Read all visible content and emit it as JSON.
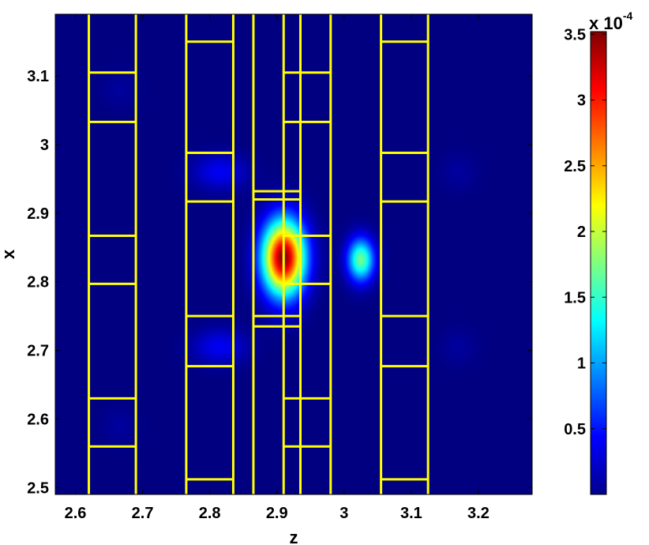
{
  "chart_data": {
    "type": "heatmap",
    "title": "",
    "xlabel": "z",
    "ylabel": "x",
    "xlim": [
      2.57,
      3.28
    ],
    "ylim": [
      2.49,
      3.19
    ],
    "xticks": [
      2.6,
      2.7,
      2.8,
      2.9,
      3.0,
      3.1,
      3.2
    ],
    "xtick_labels": [
      "2.6",
      "2.7",
      "2.8",
      "2.9",
      "3",
      "3.1",
      "3.2"
    ],
    "yticks": [
      2.5,
      2.6,
      2.7,
      2.8,
      2.9,
      3.0,
      3.1
    ],
    "ytick_labels": [
      "2.5",
      "2.6",
      "2.7",
      "2.8",
      "2.9",
      "3",
      "3.1"
    ],
    "grid": false,
    "colormap": "jet",
    "background_color": "#00008f",
    "overlay_color": "#ffff00",
    "colorbar": {
      "range": [
        0,
        0.000352
      ],
      "ticks": [
        5e-05,
        0.0001,
        0.00015,
        0.0002,
        0.00025,
        0.0003,
        0.00035
      ],
      "tick_labels": [
        "0.5",
        "1",
        "1.5",
        "2",
        "2.5",
        "3",
        "3.5"
      ],
      "multiplier_base": "x 10",
      "multiplier_exponent": "-4"
    },
    "hotspots": [
      {
        "z": 2.91,
        "x": 2.835,
        "peak": 0.00035,
        "sigma_z": 0.022,
        "sigma_x": 0.038
      },
      {
        "z": 3.025,
        "x": 2.832,
        "peak": 0.00017,
        "sigma_z": 0.014,
        "sigma_x": 0.022
      },
      {
        "z": 2.815,
        "x": 2.96,
        "peak": 4e-05,
        "sigma_z": 0.028,
        "sigma_x": 0.018
      },
      {
        "z": 2.815,
        "x": 2.705,
        "peak": 4e-05,
        "sigma_z": 0.028,
        "sigma_x": 0.018
      },
      {
        "z": 2.665,
        "x": 3.08,
        "peak": 1e-05,
        "sigma_z": 0.02,
        "sigma_x": 0.02
      },
      {
        "z": 2.665,
        "x": 2.59,
        "peak": 1e-05,
        "sigma_z": 0.02,
        "sigma_x": 0.02
      },
      {
        "z": 3.17,
        "x": 2.96,
        "peak": 1e-05,
        "sigma_z": 0.02,
        "sigma_x": 0.02
      },
      {
        "z": 3.17,
        "x": 2.705,
        "peak": 1e-05,
        "sigma_z": 0.02,
        "sigma_x": 0.02
      }
    ],
    "structures": [
      {
        "z_range": [
          2.62,
          2.69
        ],
        "horizontal_bars_x": [
          3.105,
          3.033,
          2.867,
          2.797,
          2.63,
          2.56
        ]
      },
      {
        "z_range": [
          2.765,
          2.835
        ],
        "horizontal_bars_x": [
          3.15,
          2.988,
          2.917,
          2.75,
          2.677,
          2.512
        ]
      },
      {
        "z_range": [
          2.865,
          2.935
        ],
        "horizontal_bars_x": [
          2.932,
          2.92,
          2.75,
          2.735
        ]
      },
      {
        "z_range": [
          2.91,
          2.98
        ],
        "horizontal_bars_x": [
          3.105,
          3.033,
          2.867,
          2.797,
          2.63,
          2.56
        ]
      },
      {
        "z_range": [
          3.055,
          3.125
        ],
        "horizontal_bars_x": [
          3.15,
          2.988,
          2.917,
          2.75,
          2.677,
          2.512
        ]
      }
    ]
  }
}
